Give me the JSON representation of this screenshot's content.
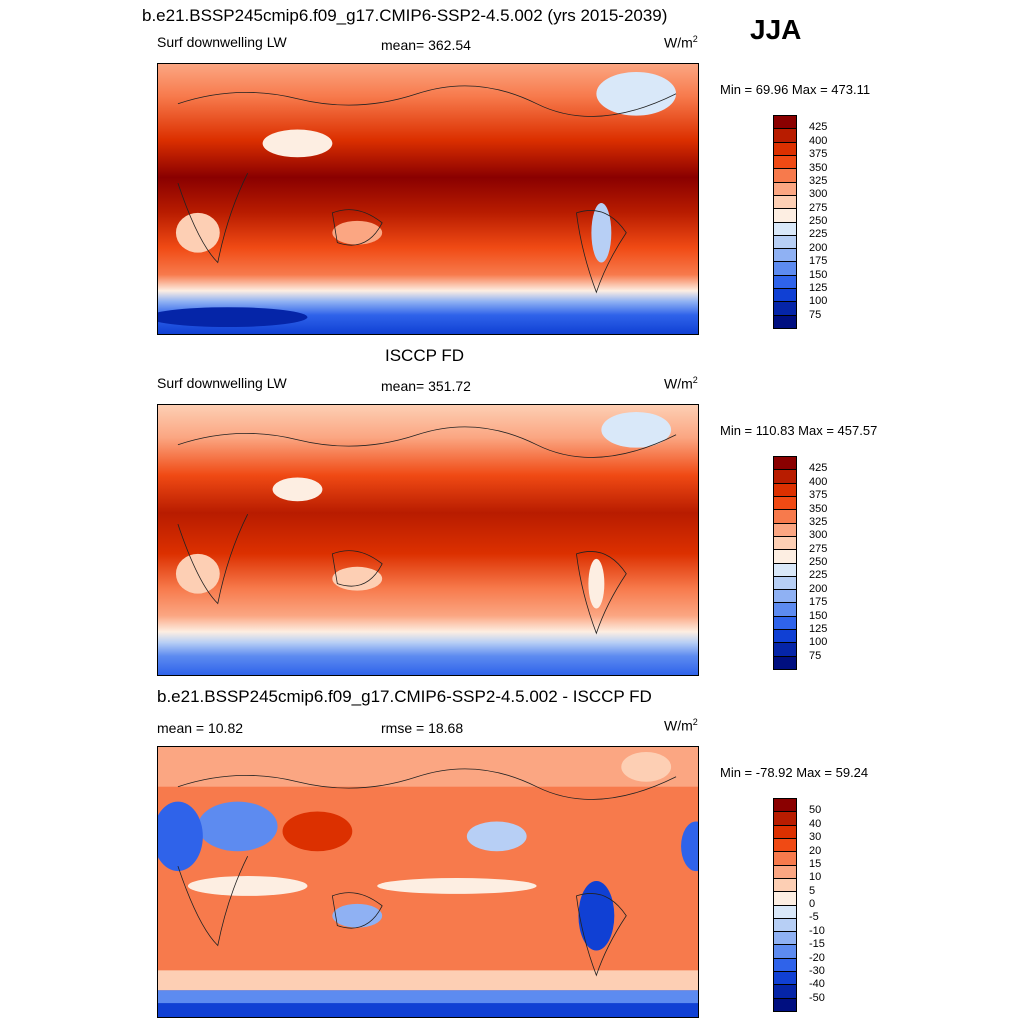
{
  "season": "JJA",
  "panels": [
    {
      "title": "b.e21.BSSP245cmip6.f09_g17.CMIP6-SSP2-4.5.002 (yrs 2015-2039)",
      "left_label": "Surf downwelling LW",
      "center_label": "mean= 362.54",
      "units": "W/m",
      "units_sup": "2",
      "minmax": "Min =  69.96 Max = 473.11",
      "ticks": [
        "425",
        "400",
        "375",
        "350",
        "325",
        "300",
        "275",
        "250",
        "225",
        "200",
        "175",
        "150",
        "125",
        "100",
        "75"
      ],
      "colors": [
        "#8a0000",
        "#b81c00",
        "#dc3000",
        "#f04a14",
        "#f77a4c",
        "#fba682",
        "#fdcfb4",
        "#fdeee2",
        "#d9e8f9",
        "#b7cff5",
        "#8fb1f3",
        "#5d8bf0",
        "#2f63ea",
        "#1040d4",
        "#0525a8",
        "#000f80"
      ]
    },
    {
      "title": "ISCCP FD",
      "left_label": "Surf downwelling LW",
      "center_label": "mean= 351.72",
      "units": "W/m",
      "units_sup": "2",
      "minmax": "Min = 110.83 Max = 457.57",
      "ticks": [
        "425",
        "400",
        "375",
        "350",
        "325",
        "300",
        "275",
        "250",
        "225",
        "200",
        "175",
        "150",
        "125",
        "100",
        "75"
      ],
      "colors": [
        "#8a0000",
        "#b81c00",
        "#dc3000",
        "#f04a14",
        "#f77a4c",
        "#fba682",
        "#fdcfb4",
        "#fdeee2",
        "#d9e8f9",
        "#b7cff5",
        "#8fb1f3",
        "#5d8bf0",
        "#2f63ea",
        "#1040d4",
        "#0525a8",
        "#000f80"
      ]
    },
    {
      "title": "b.e21.BSSP245cmip6.f09_g17.CMIP6-SSP2-4.5.002 - ISCCP FD",
      "left_label": "mean =  10.82",
      "center_label": "rmse =  18.68",
      "units": "W/m",
      "units_sup": "2",
      "minmax": "Min = -78.92 Max =  59.24",
      "ticks": [
        "50",
        "40",
        "30",
        "20",
        "15",
        "10",
        "5",
        "0",
        "-5",
        "-10",
        "-15",
        "-20",
        "-30",
        "-40",
        "-50"
      ],
      "colors": [
        "#8a0000",
        "#b81c00",
        "#dc3000",
        "#f04a14",
        "#f77a4c",
        "#fba682",
        "#fdcfb4",
        "#fdeee2",
        "#d9e8f9",
        "#b7cff5",
        "#8fb1f3",
        "#5d8bf0",
        "#2f63ea",
        "#1040d4",
        "#0525a8",
        "#000f80"
      ]
    }
  ]
}
